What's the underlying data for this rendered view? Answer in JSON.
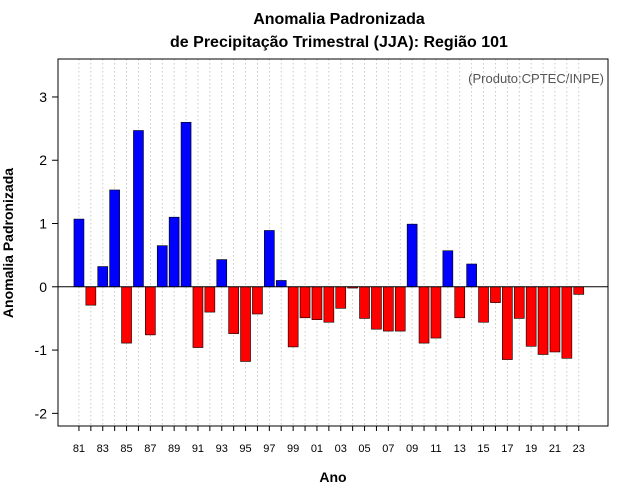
{
  "chart_data": {
    "type": "bar",
    "title": "Anomalia Padronizada",
    "subtitle": "de Precipitação Trimestral (JJA): Região 101",
    "xlabel": "Ano",
    "ylabel": "Anomalia Padronizada",
    "annotation": "(Produto:CPTEC/INPE)",
    "ylim": [
      -2.2,
      3.6
    ],
    "yticks": [
      -2,
      -1,
      0,
      1,
      2,
      3
    ],
    "grid": "vertical dotted",
    "colors": {
      "positive": "#0000ff",
      "negative": "#ff0000"
    },
    "categories": [
      "81",
      "82",
      "83",
      "84",
      "85",
      "86",
      "87",
      "88",
      "89",
      "90",
      "91",
      "92",
      "93",
      "94",
      "95",
      "96",
      "97",
      "98",
      "99",
      "00",
      "01",
      "02",
      "03",
      "04",
      "05",
      "06",
      "07",
      "08",
      "09",
      "10",
      "11",
      "12",
      "13",
      "14",
      "15",
      "16",
      "17",
      "18",
      "19",
      "20",
      "21",
      "22",
      "23"
    ],
    "xtick_labels": [
      "81",
      "83",
      "85",
      "87",
      "89",
      "91",
      "93",
      "95",
      "97",
      "99",
      "01",
      "03",
      "05",
      "07",
      "09",
      "11",
      "13",
      "15",
      "17",
      "19",
      "21",
      "23"
    ],
    "values": [
      1.07,
      -0.29,
      0.32,
      1.53,
      -0.89,
      2.47,
      -0.76,
      0.65,
      1.1,
      2.6,
      -0.96,
      -0.4,
      0.43,
      -0.74,
      -1.18,
      -0.43,
      0.89,
      0.1,
      -0.95,
      -0.49,
      -0.52,
      -0.56,
      -0.34,
      -0.02,
      -0.5,
      -0.67,
      -0.7,
      -0.7,
      0.99,
      -0.89,
      -0.81,
      0.57,
      -0.49,
      0.36,
      -0.56,
      -0.25,
      -1.15,
      -0.5,
      -0.94,
      -1.07,
      -1.03,
      -1.13,
      -0.12
    ]
  }
}
